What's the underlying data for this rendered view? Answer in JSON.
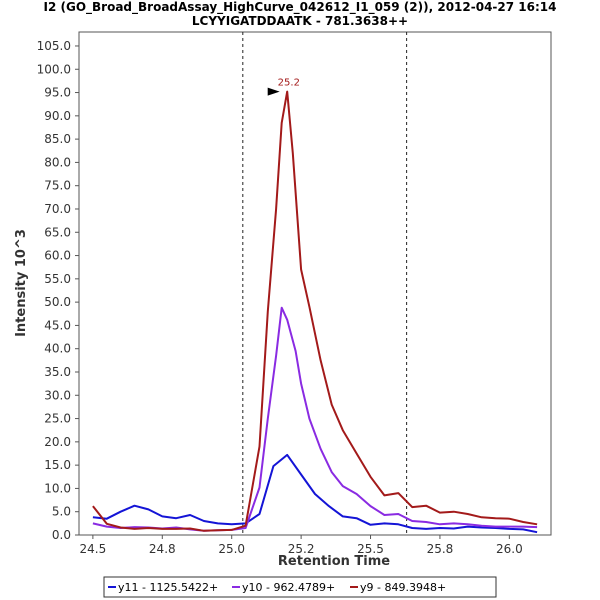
{
  "chart_data": {
    "type": "line",
    "title": "I2 (GO_Broad_BroadAssay_HighCurve_042612_I1_059 (2)), 2012-04-27 16:14",
    "subtitle": "LCYYIGATDDAATK - 781.3638++",
    "xlabel": "Retention Time",
    "ylabel": "Intensity 10^3",
    "xlim": [
      24.45,
      26.15
    ],
    "ylim": [
      0,
      108
    ],
    "x_ticks": [
      "24.5",
      "24.8",
      "25.0",
      "25.2",
      "25.5",
      "25.8",
      "26.0"
    ],
    "x_tick_values": [
      24.5,
      24.75,
      25.0,
      25.25,
      25.5,
      25.75,
      26.0
    ],
    "y_ticks": [
      "0.0",
      "5.0",
      "10.0",
      "15.0",
      "20.0",
      "25.0",
      "30.0",
      "35.0",
      "40.0",
      "45.0",
      "50.0",
      "55.0",
      "60.0",
      "65.0",
      "70.0",
      "75.0",
      "80.0",
      "85.0",
      "90.0",
      "95.0",
      "100.0",
      "105.0"
    ],
    "y_tick_values": [
      0,
      5,
      10,
      15,
      20,
      25,
      30,
      35,
      40,
      45,
      50,
      55,
      60,
      65,
      70,
      75,
      80,
      85,
      90,
      95,
      100,
      105
    ],
    "vlines": [
      25.04,
      25.63
    ],
    "peak_annotation": {
      "label": "25.2",
      "x": 25.18,
      "y": 95.2,
      "color": "#a31a1a"
    },
    "legend_position": "bottom",
    "grid": false,
    "series": [
      {
        "name": "y11 - 1125.5422+",
        "color": "#1414d6",
        "x": [
          24.5,
          24.55,
          24.6,
          24.65,
          24.7,
          24.75,
          24.8,
          24.85,
          24.9,
          24.95,
          25.0,
          25.05,
          25.1,
          25.15,
          25.2,
          25.25,
          25.3,
          25.35,
          25.4,
          25.45,
          25.5,
          25.55,
          25.6,
          25.65,
          25.7,
          25.75,
          25.8,
          25.85,
          25.9,
          25.95,
          26.0,
          26.05,
          26.1
        ],
        "y": [
          3.8,
          3.5,
          5.0,
          6.3,
          5.5,
          4.0,
          3.6,
          4.3,
          3.0,
          2.5,
          2.3,
          2.5,
          4.5,
          14.8,
          17.2,
          13.0,
          8.8,
          6.2,
          4.0,
          3.6,
          2.2,
          2.5,
          2.3,
          1.5,
          1.3,
          1.5,
          1.4,
          1.8,
          1.6,
          1.5,
          1.3,
          1.2,
          0.6
        ]
      },
      {
        "name": "y10 - 962.4789+",
        "color": "#8a2be2",
        "x": [
          24.5,
          24.55,
          24.6,
          24.65,
          24.7,
          24.75,
          24.8,
          24.85,
          24.9,
          24.95,
          25.0,
          25.05,
          25.1,
          25.13,
          25.16,
          25.18,
          25.2,
          25.23,
          25.25,
          25.28,
          25.32,
          25.36,
          25.4,
          25.45,
          25.5,
          25.55,
          25.6,
          25.65,
          25.7,
          25.75,
          25.8,
          25.85,
          25.9,
          25.95,
          26.0,
          26.05,
          26.1
        ],
        "y": [
          2.5,
          1.8,
          1.5,
          1.7,
          1.6,
          1.4,
          1.6,
          1.2,
          0.9,
          1.0,
          1.1,
          1.5,
          10.2,
          25.0,
          38.5,
          48.8,
          46.2,
          39.5,
          32.5,
          25.0,
          18.5,
          13.5,
          10.5,
          8.8,
          6.2,
          4.3,
          4.5,
          3.0,
          2.8,
          2.3,
          2.5,
          2.3,
          2.0,
          1.8,
          1.8,
          1.8,
          1.7
        ]
      },
      {
        "name": "y9 - 849.3948+",
        "color": "#a31a1a",
        "x": [
          24.5,
          24.55,
          24.6,
          24.65,
          24.7,
          24.75,
          24.8,
          24.85,
          24.9,
          24.95,
          25.0,
          25.05,
          25.1,
          25.13,
          25.16,
          25.18,
          25.2,
          25.22,
          25.25,
          25.28,
          25.32,
          25.36,
          25.4,
          25.45,
          25.5,
          25.55,
          25.6,
          25.65,
          25.7,
          25.75,
          25.8,
          25.85,
          25.9,
          25.95,
          26.0,
          26.05,
          26.1
        ],
        "y": [
          6.2,
          2.4,
          1.6,
          1.3,
          1.5,
          1.3,
          1.3,
          1.4,
          0.9,
          1.0,
          1.1,
          2.0,
          19.0,
          48.0,
          70.0,
          88.5,
          95.2,
          82.0,
          57.0,
          49.0,
          37.5,
          28.0,
          22.5,
          17.5,
          12.5,
          8.5,
          9.0,
          6.0,
          6.3,
          4.8,
          5.0,
          4.5,
          3.8,
          3.6,
          3.5,
          2.8,
          2.3
        ]
      }
    ]
  }
}
